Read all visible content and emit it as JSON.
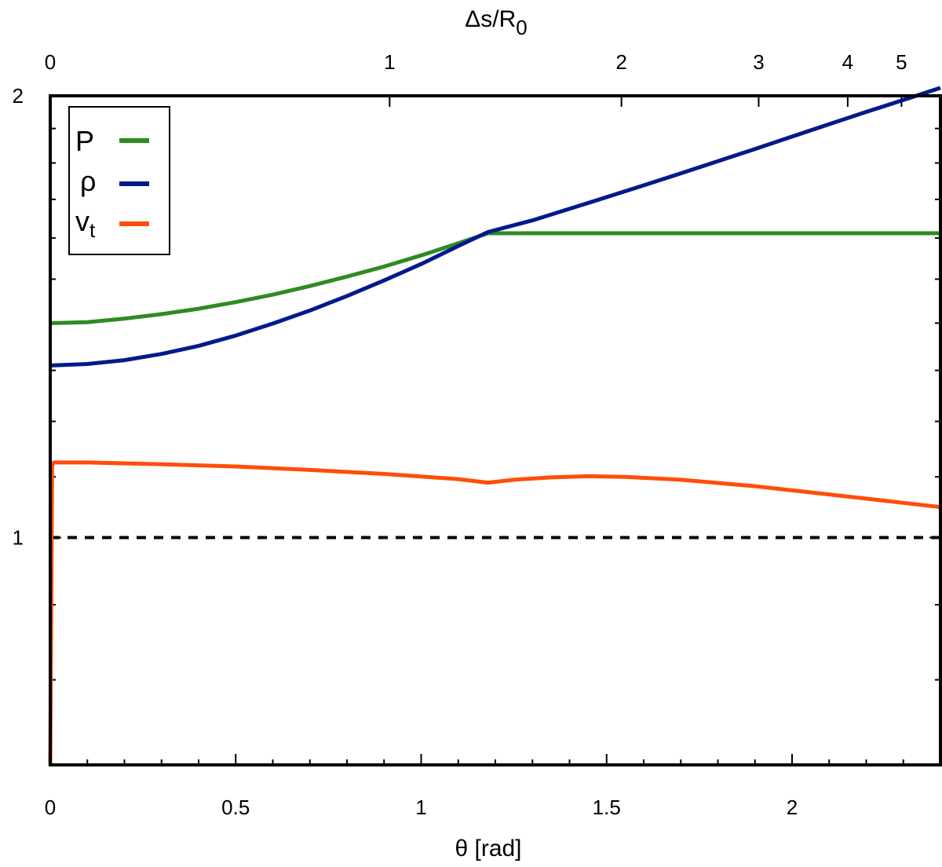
{
  "chart_data": {
    "type": "line",
    "title": "",
    "xlabel": "θ [rad]",
    "top_xlabel": {
      "base": "Δs/R",
      "subscript": "0"
    },
    "ylabel": "",
    "xlim": [
      0,
      2.4
    ],
    "ylim_log": [
      0.7,
      2
    ],
    "y_scale": "log",
    "grid": false,
    "legend_position": "top-left",
    "x_ticks": [
      {
        "value": 0,
        "label": "0"
      },
      {
        "value": 0.5,
        "label": "0.5"
      },
      {
        "value": 1,
        "label": "1"
      },
      {
        "value": 1.5,
        "label": "1.5"
      },
      {
        "value": 2,
        "label": "2"
      }
    ],
    "top_x_ticks": [
      {
        "theta": 0,
        "label": "0"
      },
      {
        "theta": 0.915,
        "label": "1"
      },
      {
        "theta": 1.54,
        "label": "2"
      },
      {
        "theta": 1.91,
        "label": "3"
      },
      {
        "theta": 2.15,
        "label": "4"
      },
      {
        "theta": 2.295,
        "label": "5"
      }
    ],
    "y_ticks": [
      {
        "value": 1,
        "label": "1"
      },
      {
        "value": 2,
        "label": "2"
      }
    ],
    "reference_line": {
      "y": 1,
      "style": "dashed",
      "color": "#000000"
    },
    "series": [
      {
        "name": "P",
        "color": "#2e8b22",
        "x": [
          0,
          0.1,
          0.2,
          0.3,
          0.4,
          0.5,
          0.6,
          0.7,
          0.8,
          0.9,
          1.0,
          1.1,
          1.18,
          1.3,
          1.5,
          1.8,
          2.1,
          2.4
        ],
        "y": [
          1.4,
          1.402,
          1.41,
          1.42,
          1.432,
          1.447,
          1.464,
          1.484,
          1.506,
          1.53,
          1.557,
          1.587,
          1.612,
          1.612,
          1.612,
          1.612,
          1.612,
          1.612
        ]
      },
      {
        "name": "ρ",
        "color": "#001a8c",
        "x": [
          0,
          0.1,
          0.2,
          0.3,
          0.4,
          0.5,
          0.6,
          0.7,
          0.8,
          0.9,
          1.0,
          1.1,
          1.18,
          1.3,
          1.4,
          1.5,
          1.6,
          1.7,
          1.8,
          1.9,
          2.0,
          2.1,
          2.2,
          2.3,
          2.4
        ],
        "y": [
          1.31,
          1.313,
          1.321,
          1.334,
          1.351,
          1.373,
          1.399,
          1.428,
          1.461,
          1.497,
          1.536,
          1.58,
          1.615,
          1.645,
          1.675,
          1.706,
          1.738,
          1.771,
          1.805,
          1.84,
          1.876,
          1.913,
          1.95,
          1.987,
          2.025
        ]
      },
      {
        "name": "vt",
        "label_base": "v",
        "label_sub": "t",
        "color": "#ff4d0a",
        "x": [
          0,
          0.005,
          0.01,
          0.1,
          0.3,
          0.5,
          0.7,
          0.9,
          1.1,
          1.18,
          1.25,
          1.35,
          1.45,
          1.55,
          1.7,
          1.9,
          2.1,
          2.3,
          2.4
        ],
        "y": [
          0.7,
          1.12,
          1.125,
          1.125,
          1.122,
          1.118,
          1.112,
          1.105,
          1.096,
          1.09,
          1.095,
          1.099,
          1.101,
          1.1,
          1.095,
          1.084,
          1.07,
          1.056,
          1.049
        ]
      }
    ]
  }
}
